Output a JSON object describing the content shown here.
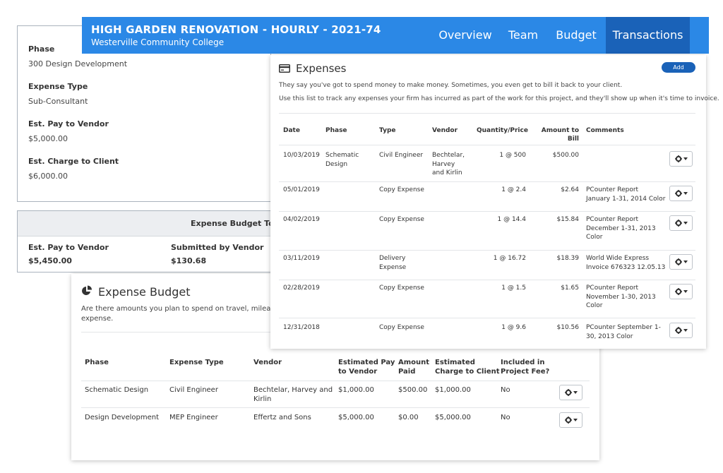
{
  "detail": {
    "phase_label": "Phase",
    "phase_value": "300 Design Development",
    "type_label": "Expense Type",
    "type_value": "Sub-Consultant",
    "pay_label": "Est. Pay to Vendor",
    "pay_value": "$5,000.00",
    "charge_label": "Est. Charge to Client",
    "charge_value": "$6,000.00"
  },
  "totals": {
    "title": "Expense Budget Tota",
    "pay_label": "Est. Pay to Vendor",
    "pay_value": "$5,450.00",
    "submitted_label": "Submitted by Vendor",
    "submitted_value": "$130.68"
  },
  "header": {
    "title": "HIGH GARDEN RENOVATION - HOURLY - 2021-74",
    "subtitle": "Westerville Community College",
    "tabs": [
      "Overview",
      "Team",
      "Budget",
      "Transactions"
    ],
    "active_tab": "Transactions",
    "color": "#2b88e6",
    "active_color": "#1a62b8"
  },
  "budget": {
    "title": "Expense Budget",
    "icon": "pie-chart-icon",
    "desc_line1": "Are there amounts you plan to spend on travel, mileage c",
    "desc_line2": "expense.",
    "columns": {
      "phase": "Phase",
      "type": "Expense Type",
      "vendor": "Vendor",
      "est_pay_1": "Estimated Pay",
      "est_pay_2": "to Vendor",
      "paid_1": "Amount",
      "paid_2": "Paid",
      "est_charge_1": "Estimated",
      "est_charge_2": "Charge to Client",
      "included_1": "Included in",
      "included_2": "Project Fee?"
    },
    "rows": [
      {
        "phase": "Schematic Design",
        "type": "Civil Engineer",
        "vendor_1": "Bechtelar, Harvey and",
        "vendor_2": "Kirlin",
        "est_pay": "$1,000.00",
        "paid": "$500.00",
        "est_charge": "$1,000.00",
        "included": "No"
      },
      {
        "phase": "Design Development",
        "type": "MEP Engineer",
        "vendor_1": "Effertz and Sons",
        "vendor_2": "",
        "est_pay": "$5,000.00",
        "paid": "$0.00",
        "est_charge": "$5,000.00",
        "included": "No"
      }
    ]
  },
  "expenses": {
    "title": "Expenses",
    "icon": "credit-card-icon",
    "add_label": "Add",
    "desc1": "They say you've got to spend money to make money. Sometimes, you even get to bill it back to your client.",
    "desc2": "Use this list to track any expenses your firm has incurred as part of the work for this project, and they'll show up when it's time to invoice.",
    "columns": {
      "date": "Date",
      "phase": "Phase",
      "type": "Type",
      "vendor": "Vendor",
      "qty": "Quantity/Price",
      "amount_1": "Amount to",
      "amount_2": "Bill",
      "comments": "Comments"
    },
    "rows": [
      {
        "date": "10/03/2019",
        "phase_1": "Schematic",
        "phase_2": "Design",
        "type_1": "Civil Engineer",
        "type_2": "",
        "vendor_1": "Bechtelar,",
        "vendor_2": "Harvey",
        "vendor_3": "and Kirlin",
        "qty": "1 @ 500",
        "amount": "$500.00",
        "comment_1": "",
        "comment_2": "",
        "comment_3": ""
      },
      {
        "date": "05/01/2019",
        "phase_1": "",
        "phase_2": "",
        "type_1": "Copy Expense",
        "type_2": "",
        "vendor_1": "",
        "vendor_2": "",
        "vendor_3": "",
        "qty": "1 @ 2.4",
        "amount": "$2.64",
        "comment_1": "PCounter Report",
        "comment_2": "January 1-31, 2014 Color",
        "comment_3": ""
      },
      {
        "date": "04/02/2019",
        "phase_1": "",
        "phase_2": "",
        "type_1": "Copy Expense",
        "type_2": "",
        "vendor_1": "",
        "vendor_2": "",
        "vendor_3": "",
        "qty": "1 @ 14.4",
        "amount": "$15.84",
        "comment_1": "PCounter Report",
        "comment_2": "December 1-31, 2013",
        "comment_3": "Color"
      },
      {
        "date": "03/11/2019",
        "phase_1": "",
        "phase_2": "",
        "type_1": "Delivery",
        "type_2": "Expense",
        "vendor_1": "",
        "vendor_2": "",
        "vendor_3": "",
        "qty": "1 @ 16.72",
        "amount": "$18.39",
        "comment_1": "World Wide Express",
        "comment_2": "Invoice 676323 12.05.13",
        "comment_3": ""
      },
      {
        "date": "02/28/2019",
        "phase_1": "",
        "phase_2": "",
        "type_1": "Copy Expense",
        "type_2": "",
        "vendor_1": "",
        "vendor_2": "",
        "vendor_3": "",
        "qty": "1 @ 1.5",
        "amount": "$1.65",
        "comment_1": "PCounter Report",
        "comment_2": "November 1-30, 2013",
        "comment_3": "Color"
      },
      {
        "date": "12/31/2018",
        "phase_1": "",
        "phase_2": "",
        "type_1": "Copy Expense",
        "type_2": "",
        "vendor_1": "",
        "vendor_2": "",
        "vendor_3": "",
        "qty": "1 @ 9.6",
        "amount": "$10.56",
        "comment_1": "PCounter September 1-",
        "comment_2": "30, 2013 Color",
        "comment_3": ""
      }
    ]
  }
}
